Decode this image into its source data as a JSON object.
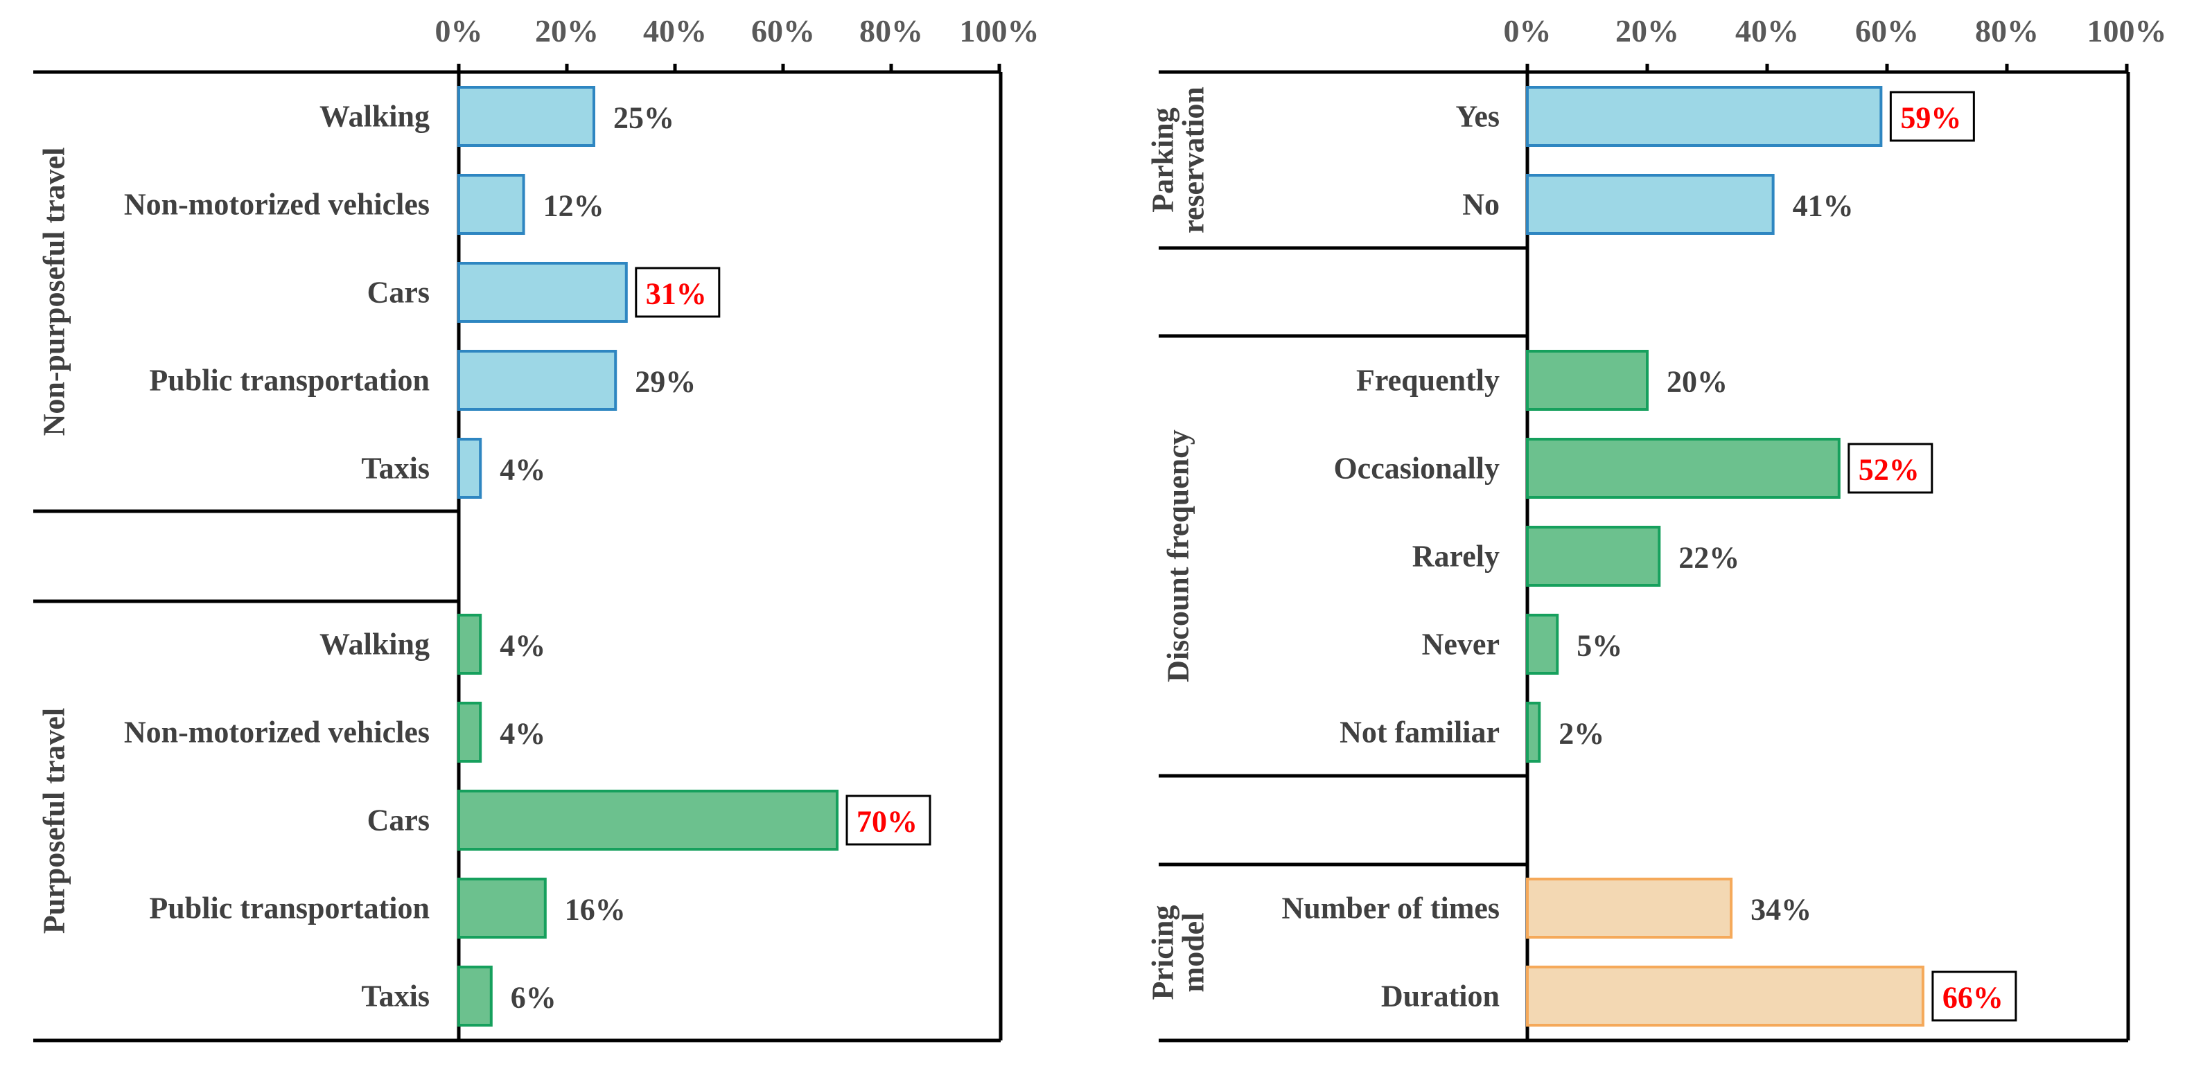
{
  "colors": {
    "blue_fill": "#9dd7e6",
    "blue_stroke": "#2e86c1",
    "green_fill": "#6cc18e",
    "green_stroke": "#16a05d",
    "orange_fill": "#f3d8b3",
    "orange_stroke": "#f5a95a",
    "highlight_text": "#ff0000",
    "axis": "#000000"
  },
  "chart_data": [
    {
      "type": "bar",
      "orientation": "horizontal",
      "xlim": [
        0,
        100
      ],
      "x_ticks": [
        "0%",
        "20%",
        "40%",
        "60%",
        "80%",
        "100%"
      ],
      "x_axis_position": "top",
      "grid": false,
      "groups": [
        {
          "name": "Non-purposeful travel",
          "color": "blue",
          "categories": [
            "Walking",
            "Non-motorized vehicles",
            "Cars",
            "Public transportation",
            "Taxis"
          ],
          "values": [
            25,
            12,
            31,
            29,
            4
          ],
          "labels": [
            "25%",
            "12%",
            "31%",
            "29%",
            "4%"
          ],
          "highlight_index": 2
        },
        {
          "name": "Purposeful travel",
          "color": "green",
          "categories": [
            "Walking",
            "Non-motorized vehicles",
            "Cars",
            "Public transportation",
            "Taxis"
          ],
          "values": [
            4,
            4,
            70,
            16,
            6
          ],
          "labels": [
            "4%",
            "4%",
            "70%",
            "16%",
            "6%"
          ],
          "highlight_index": 2
        }
      ]
    },
    {
      "type": "bar",
      "orientation": "horizontal",
      "xlim": [
        0,
        100
      ],
      "x_ticks": [
        "0%",
        "20%",
        "40%",
        "60%",
        "80%",
        "100%"
      ],
      "x_axis_position": "top",
      "grid": false,
      "groups": [
        {
          "name_lines": [
            "Parking",
            "reservation"
          ],
          "color": "blue",
          "categories": [
            "Yes",
            "No"
          ],
          "values": [
            59,
            41
          ],
          "labels": [
            "59%",
            "41%"
          ],
          "highlight_index": 0
        },
        {
          "name_lines": [
            "Discount frequency"
          ],
          "color": "green",
          "categories": [
            "Frequently",
            "Occasionally",
            "Rarely",
            "Never",
            "Not familiar"
          ],
          "values": [
            20,
            52,
            22,
            5,
            2
          ],
          "labels": [
            "20%",
            "52%",
            "22%",
            "5%",
            "2%"
          ],
          "highlight_index": 1
        },
        {
          "name_lines": [
            "Pricing",
            "model"
          ],
          "color": "orange",
          "categories": [
            "Number of times",
            "Duration"
          ],
          "values": [
            34,
            66
          ],
          "labels": [
            "34%",
            "66%"
          ],
          "highlight_index": 1
        }
      ]
    }
  ]
}
